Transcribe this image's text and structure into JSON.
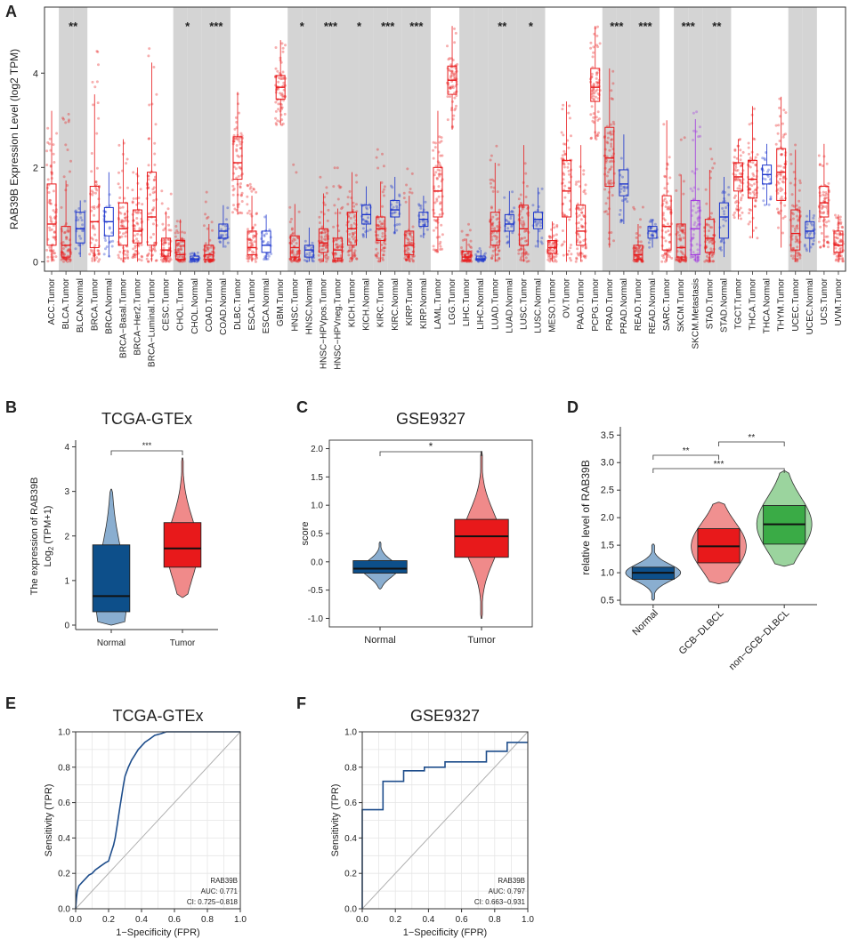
{
  "colors": {
    "tumor": "#e8191b",
    "normal": "#1a33cc",
    "metastasis": "#a033e0",
    "shade": "#d4d4d4",
    "b_normal": "#0d4f8a",
    "b_normal_violin": "#8aaed0",
    "b_tumor": "#e8191b",
    "b_tumor_violin": "#f08a8a",
    "d_normal": "#0d4f8a",
    "d_normal_violin": "#8aaed0",
    "d_gcb": "#e8191b",
    "d_gcb_violin": "#f09090",
    "d_ngcb": "#3aab46",
    "d_ngcb_violin": "#9bd49e",
    "roc": "#1f4e8c",
    "diag": "#b0b0b0"
  },
  "panels": {
    "a": "A",
    "b": "B",
    "c": "C",
    "d": "D",
    "e": "E",
    "f": "F"
  },
  "chart_data": [
    {
      "id": "A",
      "type": "box",
      "ylabel": "RAB39B Expression Level (log2 TPM)",
      "ylim": [
        -0.2,
        5.4
      ],
      "yticks": [
        0,
        2,
        4
      ],
      "groups": [
        {
          "label": "ACC.Tumor",
          "kind": "tumor",
          "q1": 0.35,
          "med": 0.8,
          "q3": 1.65,
          "lo": 0,
          "hi": 3.2,
          "shade": false,
          "sig": ""
        },
        {
          "label": "BLCA.Tumor",
          "kind": "tumor",
          "q1": 0.1,
          "med": 0.35,
          "q3": 0.75,
          "lo": 0,
          "hi": 4.0,
          "shade": true,
          "sig": "**"
        },
        {
          "label": "BLCA.Normal",
          "kind": "normal",
          "q1": 0.4,
          "med": 0.7,
          "q3": 1.05,
          "lo": 0.1,
          "hi": 1.3,
          "shade": true,
          "sig": ""
        },
        {
          "label": "BRCA.Tumor",
          "kind": "tumor",
          "q1": 0.3,
          "med": 0.85,
          "q3": 1.6,
          "lo": 0,
          "hi": 5.0,
          "shade": false,
          "sig": ""
        },
        {
          "label": "BRCA.Normal",
          "kind": "normal",
          "q1": 0.55,
          "med": 0.85,
          "q3": 1.15,
          "lo": 0.1,
          "hi": 1.9,
          "shade": false,
          "sig": ""
        },
        {
          "label": "BRCA−Basal.Tumor",
          "kind": "tumor",
          "q1": 0.35,
          "med": 0.7,
          "q3": 1.25,
          "lo": 0,
          "hi": 2.6,
          "shade": false,
          "sig": ""
        },
        {
          "label": "BRCA−Her2.Tumor",
          "kind": "tumor",
          "q1": 0.4,
          "med": 0.65,
          "q3": 1.1,
          "lo": 0,
          "hi": 2.0,
          "shade": false,
          "sig": ""
        },
        {
          "label": "BRCA−Luminal.Tumor",
          "kind": "tumor",
          "q1": 0.35,
          "med": 0.95,
          "q3": 1.9,
          "lo": 0,
          "hi": 4.6,
          "shade": false,
          "sig": ""
        },
        {
          "label": "CESC.Tumor",
          "kind": "tumor",
          "q1": 0.12,
          "med": 0.25,
          "q3": 0.5,
          "lo": 0,
          "hi": 1.6,
          "shade": false,
          "sig": ""
        },
        {
          "label": "CHOL.Tumor",
          "kind": "tumor",
          "q1": 0.05,
          "med": 0.15,
          "q3": 0.45,
          "lo": 0,
          "hi": 0.9,
          "shade": true,
          "sig": "*"
        },
        {
          "label": "CHOL.Normal",
          "kind": "normal",
          "q1": 0.03,
          "med": 0.06,
          "q3": 0.12,
          "lo": 0,
          "hi": 0.2,
          "shade": true,
          "sig": ""
        },
        {
          "label": "COAD.Tumor",
          "kind": "tumor",
          "q1": 0.05,
          "med": 0.15,
          "q3": 0.35,
          "lo": 0,
          "hi": 1.5,
          "shade": true,
          "sig": "***"
        },
        {
          "label": "COAD.Normal",
          "kind": "normal",
          "q1": 0.5,
          "med": 0.65,
          "q3": 0.8,
          "lo": 0.3,
          "hi": 1.2,
          "shade": true,
          "sig": ""
        },
        {
          "label": "DLBC.Tumor",
          "kind": "tumor",
          "q1": 1.75,
          "med": 2.1,
          "q3": 2.65,
          "lo": 1.0,
          "hi": 3.6,
          "shade": false,
          "sig": ""
        },
        {
          "label": "ESCA.Tumor",
          "kind": "tumor",
          "q1": 0.15,
          "med": 0.3,
          "q3": 0.65,
          "lo": 0,
          "hi": 1.8,
          "shade": false,
          "sig": ""
        },
        {
          "label": "ESCA.Normal",
          "kind": "normal",
          "q1": 0.2,
          "med": 0.35,
          "q3": 0.65,
          "lo": 0.05,
          "hi": 1.0,
          "shade": false,
          "sig": ""
        },
        {
          "label": "GBM.Tumor",
          "kind": "tumor",
          "q1": 3.45,
          "med": 3.7,
          "q3": 3.95,
          "lo": 2.9,
          "hi": 4.7,
          "shade": false,
          "sig": ""
        },
        {
          "label": "HNSC.Tumor",
          "kind": "tumor",
          "q1": 0.1,
          "med": 0.3,
          "q3": 0.55,
          "lo": 0,
          "hi": 2.3,
          "shade": true,
          "sig": "*"
        },
        {
          "label": "HNSC.Normal",
          "kind": "normal",
          "q1": 0.1,
          "med": 0.25,
          "q3": 0.35,
          "lo": 0,
          "hi": 0.9,
          "shade": true,
          "sig": ""
        },
        {
          "label": "HNSC−HPVpos.Tumor",
          "kind": "tumor",
          "q1": 0.2,
          "med": 0.4,
          "q3": 0.7,
          "lo": 0,
          "hi": 1.8,
          "shade": true,
          "sig": "***"
        },
        {
          "label": "HNSC−HPVneg.Tumor",
          "kind": "tumor",
          "q1": 0.08,
          "med": 0.25,
          "q3": 0.5,
          "lo": 0,
          "hi": 2.0,
          "shade": true,
          "sig": ""
        },
        {
          "label": "KICH.Tumor",
          "kind": "tumor",
          "q1": 0.35,
          "med": 0.7,
          "q3": 1.05,
          "lo": 0,
          "hi": 1.9,
          "shade": true,
          "sig": "*"
        },
        {
          "label": "KICH.Normal",
          "kind": "normal",
          "q1": 0.8,
          "med": 1.0,
          "q3": 1.2,
          "lo": 0.5,
          "hi": 1.6,
          "shade": true,
          "sig": ""
        },
        {
          "label": "KIRC.Tumor",
          "kind": "tumor",
          "q1": 0.45,
          "med": 0.7,
          "q3": 0.95,
          "lo": 0,
          "hi": 2.4,
          "shade": true,
          "sig": "***"
        },
        {
          "label": "KIRC.Normal",
          "kind": "normal",
          "q1": 0.95,
          "med": 1.1,
          "q3": 1.3,
          "lo": 0.6,
          "hi": 1.8,
          "shade": true,
          "sig": ""
        },
        {
          "label": "KIRP.Tumor",
          "kind": "tumor",
          "q1": 0.15,
          "med": 0.35,
          "q3": 0.65,
          "lo": 0,
          "hi": 2.0,
          "shade": true,
          "sig": "***"
        },
        {
          "label": "KIRP.Normal",
          "kind": "normal",
          "q1": 0.75,
          "med": 0.9,
          "q3": 1.05,
          "lo": 0.5,
          "hi": 1.4,
          "shade": true,
          "sig": ""
        },
        {
          "label": "LAML.Tumor",
          "kind": "tumor",
          "q1": 0.95,
          "med": 1.5,
          "q3": 2.0,
          "lo": 0.2,
          "hi": 3.2,
          "shade": false,
          "sig": ""
        },
        {
          "label": "LGG.Tumor",
          "kind": "tumor",
          "q1": 3.55,
          "med": 3.85,
          "q3": 4.15,
          "lo": 2.8,
          "hi": 5.0,
          "shade": false,
          "sig": ""
        },
        {
          "label": "LIHC.Tumor",
          "kind": "tumor",
          "q1": 0.04,
          "med": 0.1,
          "q3": 0.22,
          "lo": 0,
          "hi": 0.9,
          "shade": true,
          "sig": ""
        },
        {
          "label": "LIHC.Normal",
          "kind": "normal",
          "q1": 0.03,
          "med": 0.06,
          "q3": 0.12,
          "lo": 0,
          "hi": 0.3,
          "shade": true,
          "sig": ""
        },
        {
          "label": "LUAD.Tumor",
          "kind": "tumor",
          "q1": 0.35,
          "med": 0.65,
          "q3": 1.05,
          "lo": 0,
          "hi": 2.6,
          "shade": true,
          "sig": "**"
        },
        {
          "label": "LUAD.Normal",
          "kind": "normal",
          "q1": 0.65,
          "med": 0.8,
          "q3": 1.0,
          "lo": 0.3,
          "hi": 1.5,
          "shade": true,
          "sig": ""
        },
        {
          "label": "LUSC.Tumor",
          "kind": "tumor",
          "q1": 0.35,
          "med": 0.7,
          "q3": 1.2,
          "lo": 0,
          "hi": 2.7,
          "shade": true,
          "sig": "*"
        },
        {
          "label": "LUSC.Normal",
          "kind": "normal",
          "q1": 0.7,
          "med": 0.9,
          "q3": 1.05,
          "lo": 0.3,
          "hi": 1.6,
          "shade": true,
          "sig": ""
        },
        {
          "label": "MESO.Tumor",
          "kind": "tumor",
          "q1": 0.18,
          "med": 0.3,
          "q3": 0.45,
          "lo": 0,
          "hi": 0.9,
          "shade": false,
          "sig": ""
        },
        {
          "label": "OV.Tumor",
          "kind": "tumor",
          "q1": 0.95,
          "med": 1.5,
          "q3": 2.15,
          "lo": 0,
          "hi": 3.4,
          "shade": false,
          "sig": ""
        },
        {
          "label": "PAAD.Tumor",
          "kind": "tumor",
          "q1": 0.35,
          "med": 0.65,
          "q3": 1.2,
          "lo": 0,
          "hi": 2.6,
          "shade": false,
          "sig": ""
        },
        {
          "label": "PCPG.Tumor",
          "kind": "tumor",
          "q1": 3.4,
          "med": 3.7,
          "q3": 4.1,
          "lo": 2.6,
          "hi": 5.0,
          "shade": false,
          "sig": ""
        },
        {
          "label": "PRAD.Tumor",
          "kind": "tumor",
          "q1": 1.6,
          "med": 2.2,
          "q3": 2.85,
          "lo": 0.3,
          "hi": 4.1,
          "shade": true,
          "sig": "***"
        },
        {
          "label": "PRAD.Normal",
          "kind": "normal",
          "q1": 1.4,
          "med": 1.65,
          "q3": 1.95,
          "lo": 0.8,
          "hi": 2.7,
          "shade": true,
          "sig": ""
        },
        {
          "label": "READ.Tumor",
          "kind": "tumor",
          "q1": 0.05,
          "med": 0.15,
          "q3": 0.35,
          "lo": 0,
          "hi": 1.2,
          "shade": true,
          "sig": "***"
        },
        {
          "label": "READ.Normal",
          "kind": "normal",
          "q1": 0.5,
          "med": 0.65,
          "q3": 0.75,
          "lo": 0.3,
          "hi": 0.9,
          "shade": true,
          "sig": ""
        },
        {
          "label": "SARC.Tumor",
          "kind": "tumor",
          "q1": 0.25,
          "med": 0.75,
          "q3": 1.4,
          "lo": 0,
          "hi": 3.0,
          "shade": false,
          "sig": ""
        },
        {
          "label": "SKCM.Tumor",
          "kind": "tumor",
          "q1": 0.1,
          "med": 0.3,
          "q3": 0.8,
          "lo": 0,
          "hi": 2.8,
          "shade": true,
          "sig": "***"
        },
        {
          "label": "SKCM.Metastasis",
          "kind": "metastasis",
          "q1": 0.15,
          "med": 0.7,
          "q3": 1.3,
          "lo": 0,
          "hi": 3.2,
          "shade": true,
          "sig": ""
        },
        {
          "label": "STAD.Tumor",
          "kind": "tumor",
          "q1": 0.2,
          "med": 0.5,
          "q3": 0.9,
          "lo": 0,
          "hi": 2.4,
          "shade": true,
          "sig": "**"
        },
        {
          "label": "STAD.Normal",
          "kind": "normal",
          "q1": 0.5,
          "med": 0.95,
          "q3": 1.25,
          "lo": 0.1,
          "hi": 1.8,
          "shade": true,
          "sig": ""
        },
        {
          "label": "TGCT.Tumor",
          "kind": "tumor",
          "q1": 1.5,
          "med": 1.8,
          "q3": 2.1,
          "lo": 0.9,
          "hi": 2.6,
          "shade": false,
          "sig": ""
        },
        {
          "label": "THCA.Tumor",
          "kind": "tumor",
          "q1": 1.35,
          "med": 1.75,
          "q3": 2.15,
          "lo": 0.5,
          "hi": 3.3,
          "shade": false,
          "sig": ""
        },
        {
          "label": "THCA.Normal",
          "kind": "normal",
          "q1": 1.65,
          "med": 1.85,
          "q3": 2.05,
          "lo": 1.2,
          "hi": 2.5,
          "shade": false,
          "sig": ""
        },
        {
          "label": "THYM.Tumor",
          "kind": "tumor",
          "q1": 1.3,
          "med": 1.9,
          "q3": 2.4,
          "lo": 0.3,
          "hi": 3.5,
          "shade": false,
          "sig": ""
        },
        {
          "label": "UCEC.Tumor",
          "kind": "tumor",
          "q1": 0.25,
          "med": 0.6,
          "q3": 1.1,
          "lo": 0,
          "hi": 2.5,
          "shade": true,
          "sig": ""
        },
        {
          "label": "UCEC.Normal",
          "kind": "normal",
          "q1": 0.5,
          "med": 0.65,
          "q3": 0.85,
          "lo": 0.2,
          "hi": 1.1,
          "shade": true,
          "sig": ""
        },
        {
          "label": "UCS.Tumor",
          "kind": "tumor",
          "q1": 0.95,
          "med": 1.25,
          "q3": 1.6,
          "lo": 0.3,
          "hi": 2.5,
          "shade": false,
          "sig": ""
        },
        {
          "label": "UVM.Tumor",
          "kind": "tumor",
          "q1": 0.2,
          "med": 0.35,
          "q3": 0.65,
          "lo": 0,
          "hi": 1.0,
          "shade": false,
          "sig": ""
        }
      ]
    },
    {
      "id": "B",
      "type": "box",
      "title": "TCGA-GTEx",
      "ylabel_main": "The expression of RAB39B",
      "ylabel_sub_pre": "Log",
      "ylabel_sub_2": "2",
      "ylabel_sub_post": " (TPM+1)",
      "ylim": [
        -0.1,
        4.15
      ],
      "yticks": [
        0,
        1,
        2,
        3,
        4
      ],
      "sig": "***",
      "groups": [
        {
          "label": "Normal",
          "q1": 0.3,
          "med": 0.65,
          "q3": 1.8,
          "vmin": 0,
          "vmax": 3.05
        },
        {
          "label": "Tumor",
          "q1": 1.3,
          "med": 1.72,
          "q3": 2.3,
          "vmin": 0.62,
          "vmax": 3.75
        }
      ]
    },
    {
      "id": "C",
      "type": "box",
      "title": "GSE9327",
      "ylabel": "score",
      "ylim": [
        -1.15,
        2.15
      ],
      "yticks": [
        -1.0,
        -0.5,
        0.0,
        0.5,
        1.0,
        1.5,
        2.0
      ],
      "ytick_labels": [
        "-1.0",
        "-0.5",
        "0.0",
        "0.5",
        "1.0",
        "1.5",
        "2.0"
      ],
      "sig": "*",
      "groups": [
        {
          "label": "Normal",
          "q1": -0.2,
          "med": -0.12,
          "q3": 0.02,
          "vmin": -0.48,
          "vmax": 0.35
        },
        {
          "label": "Tumor",
          "q1": 0.08,
          "med": 0.45,
          "q3": 0.75,
          "vmin": -1.0,
          "vmax": 1.95
        }
      ]
    },
    {
      "id": "D",
      "type": "box",
      "ylabel": "relative level of RAB39B",
      "ylim": [
        0.42,
        3.65
      ],
      "yticks": [
        0.5,
        1.0,
        1.5,
        2.0,
        2.5,
        3.0,
        3.5
      ],
      "ytick_labels": [
        "0.5",
        "1.0",
        "1.5",
        "2.0",
        "2.5",
        "3.0",
        "3.5"
      ],
      "comparisons": [
        {
          "a": 1,
          "b": 2,
          "label": "**"
        },
        {
          "a": 0,
          "b": 1,
          "label": "**"
        },
        {
          "a": 0,
          "b": 2,
          "label": "***"
        }
      ],
      "groups": [
        {
          "label": "Normal",
          "q1": 0.88,
          "med": 1.0,
          "q3": 1.1,
          "vmin": 0.5,
          "vmax": 1.52
        },
        {
          "label": "GCB−DLBCL",
          "q1": 1.18,
          "med": 1.48,
          "q3": 1.8,
          "vmin": 0.8,
          "vmax": 2.28
        },
        {
          "label": "non−GCB−DLBCL",
          "q1": 1.52,
          "med": 1.88,
          "q3": 2.22,
          "vmin": 1.12,
          "vmax": 2.85
        }
      ]
    },
    {
      "id": "E",
      "type": "line",
      "title": "TCGA-GTEx",
      "xlabel": "1−Specificity (FPR)",
      "ylabel": "Sensitivity (TPR)",
      "ticks": [
        0.0,
        0.2,
        0.4,
        0.6,
        0.8,
        1.0
      ],
      "tick_labels": [
        "0.0",
        "0.2",
        "0.4",
        "0.6",
        "0.8",
        "1.0"
      ],
      "legend_name": "RAB39B",
      "auc": "AUC: 0.771",
      "ci": "CI: 0.725−0.818",
      "fpr": [
        0,
        0.005,
        0.01,
        0.02,
        0.04,
        0.06,
        0.08,
        0.1,
        0.12,
        0.15,
        0.18,
        0.2,
        0.21,
        0.22,
        0.23,
        0.24,
        0.25,
        0.26,
        0.27,
        0.28,
        0.29,
        0.3,
        0.32,
        0.34,
        0.36,
        0.38,
        0.4,
        0.42,
        0.45,
        0.48,
        0.52,
        0.55,
        0.6,
        0.7,
        0.8,
        0.9,
        1.0
      ],
      "tpr": [
        0,
        0.06,
        0.1,
        0.13,
        0.15,
        0.17,
        0.19,
        0.2,
        0.22,
        0.24,
        0.26,
        0.27,
        0.3,
        0.33,
        0.36,
        0.4,
        0.46,
        0.52,
        0.58,
        0.64,
        0.7,
        0.75,
        0.8,
        0.84,
        0.87,
        0.9,
        0.92,
        0.94,
        0.96,
        0.98,
        0.99,
        1.0,
        1.0,
        1.0,
        1.0,
        1.0,
        1.0
      ]
    },
    {
      "id": "F",
      "type": "line",
      "title": "GSE9327",
      "xlabel": "1−Specificity (FPR)",
      "ylabel": "Sensitivity (TPR)",
      "ticks": [
        0.0,
        0.2,
        0.4,
        0.6,
        0.8,
        1.0
      ],
      "tick_labels": [
        "0.0",
        "0.2",
        "0.4",
        "0.6",
        "0.8",
        "1.0"
      ],
      "legend_name": "RAB39B",
      "auc": "AUC: 0.797",
      "ci": "CI: 0.663−0.931",
      "fpr": [
        0,
        0,
        0.0,
        0.125,
        0.125,
        0.125,
        0.125,
        0.25,
        0.25,
        0.375,
        0.375,
        0.5,
        0.5,
        0.75,
        0.75,
        0.875,
        0.875,
        1.0
      ],
      "tpr": [
        0,
        0.56,
        0.56,
        0.56,
        0.67,
        0.72,
        0.72,
        0.72,
        0.78,
        0.78,
        0.8,
        0.8,
        0.83,
        0.83,
        0.89,
        0.89,
        0.94,
        0.94
      ]
    }
  ]
}
